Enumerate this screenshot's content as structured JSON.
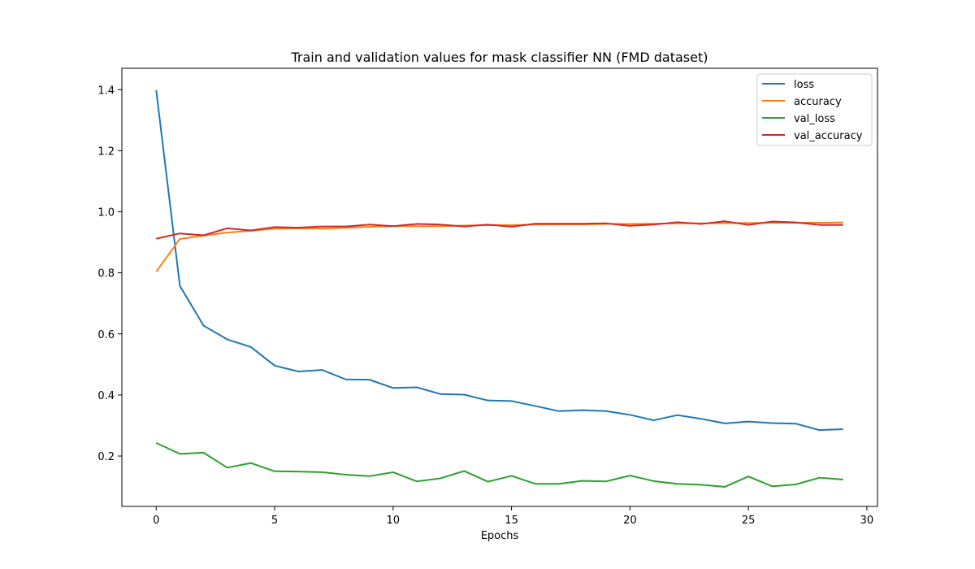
{
  "chart_data": {
    "type": "line",
    "title": "Train and validation values for mask classifier NN (FMD dataset)",
    "xlabel": "Epochs",
    "ylabel": "",
    "xlim": [
      -1.45,
      30.45
    ],
    "ylim": [
      0.035,
      1.47
    ],
    "xticks": [
      0,
      5,
      10,
      15,
      20,
      25,
      30
    ],
    "yticks": [
      0.2,
      0.4,
      0.6,
      0.8,
      1.0,
      1.2,
      1.4
    ],
    "ytick_labels": [
      "0.2",
      "0.4",
      "0.6",
      "0.8",
      "1.0",
      "1.2",
      "1.4"
    ],
    "grid": false,
    "legend_position": "upper right",
    "x": [
      0,
      1,
      2,
      3,
      4,
      5,
      6,
      7,
      8,
      9,
      10,
      11,
      12,
      13,
      14,
      15,
      16,
      17,
      18,
      19,
      20,
      21,
      22,
      23,
      24,
      25,
      26,
      27,
      28,
      29
    ],
    "series": [
      {
        "name": "loss",
        "color": "#1f77b4",
        "values": [
          1.398,
          0.757,
          0.627,
          0.582,
          0.557,
          0.496,
          0.477,
          0.482,
          0.451,
          0.45,
          0.423,
          0.425,
          0.403,
          0.401,
          0.382,
          0.38,
          0.364,
          0.347,
          0.35,
          0.347,
          0.335,
          0.317,
          0.334,
          0.322,
          0.307,
          0.313,
          0.308,
          0.306,
          0.285,
          0.288
        ]
      },
      {
        "name": "accuracy",
        "color": "#ff7f0e",
        "values": [
          0.804,
          0.911,
          0.922,
          0.932,
          0.938,
          0.945,
          0.946,
          0.945,
          0.948,
          0.951,
          0.953,
          0.953,
          0.953,
          0.955,
          0.956,
          0.956,
          0.958,
          0.959,
          0.959,
          0.96,
          0.96,
          0.961,
          0.962,
          0.962,
          0.963,
          0.963,
          0.964,
          0.964,
          0.964,
          0.965
        ]
      },
      {
        "name": "val_loss",
        "color": "#2ca02c",
        "values": [
          0.243,
          0.207,
          0.211,
          0.162,
          0.177,
          0.15,
          0.149,
          0.147,
          0.139,
          0.134,
          0.147,
          0.117,
          0.127,
          0.151,
          0.116,
          0.135,
          0.109,
          0.109,
          0.119,
          0.117,
          0.136,
          0.118,
          0.109,
          0.106,
          0.099,
          0.133,
          0.101,
          0.107,
          0.129,
          0.123
        ]
      },
      {
        "name": "val_accuracy",
        "color": "#d62728",
        "values": [
          0.912,
          0.929,
          0.923,
          0.946,
          0.939,
          0.95,
          0.948,
          0.952,
          0.952,
          0.958,
          0.953,
          0.96,
          0.958,
          0.952,
          0.958,
          0.951,
          0.961,
          0.961,
          0.961,
          0.962,
          0.954,
          0.958,
          0.966,
          0.96,
          0.969,
          0.957,
          0.968,
          0.965,
          0.957,
          0.957
        ]
      }
    ]
  }
}
